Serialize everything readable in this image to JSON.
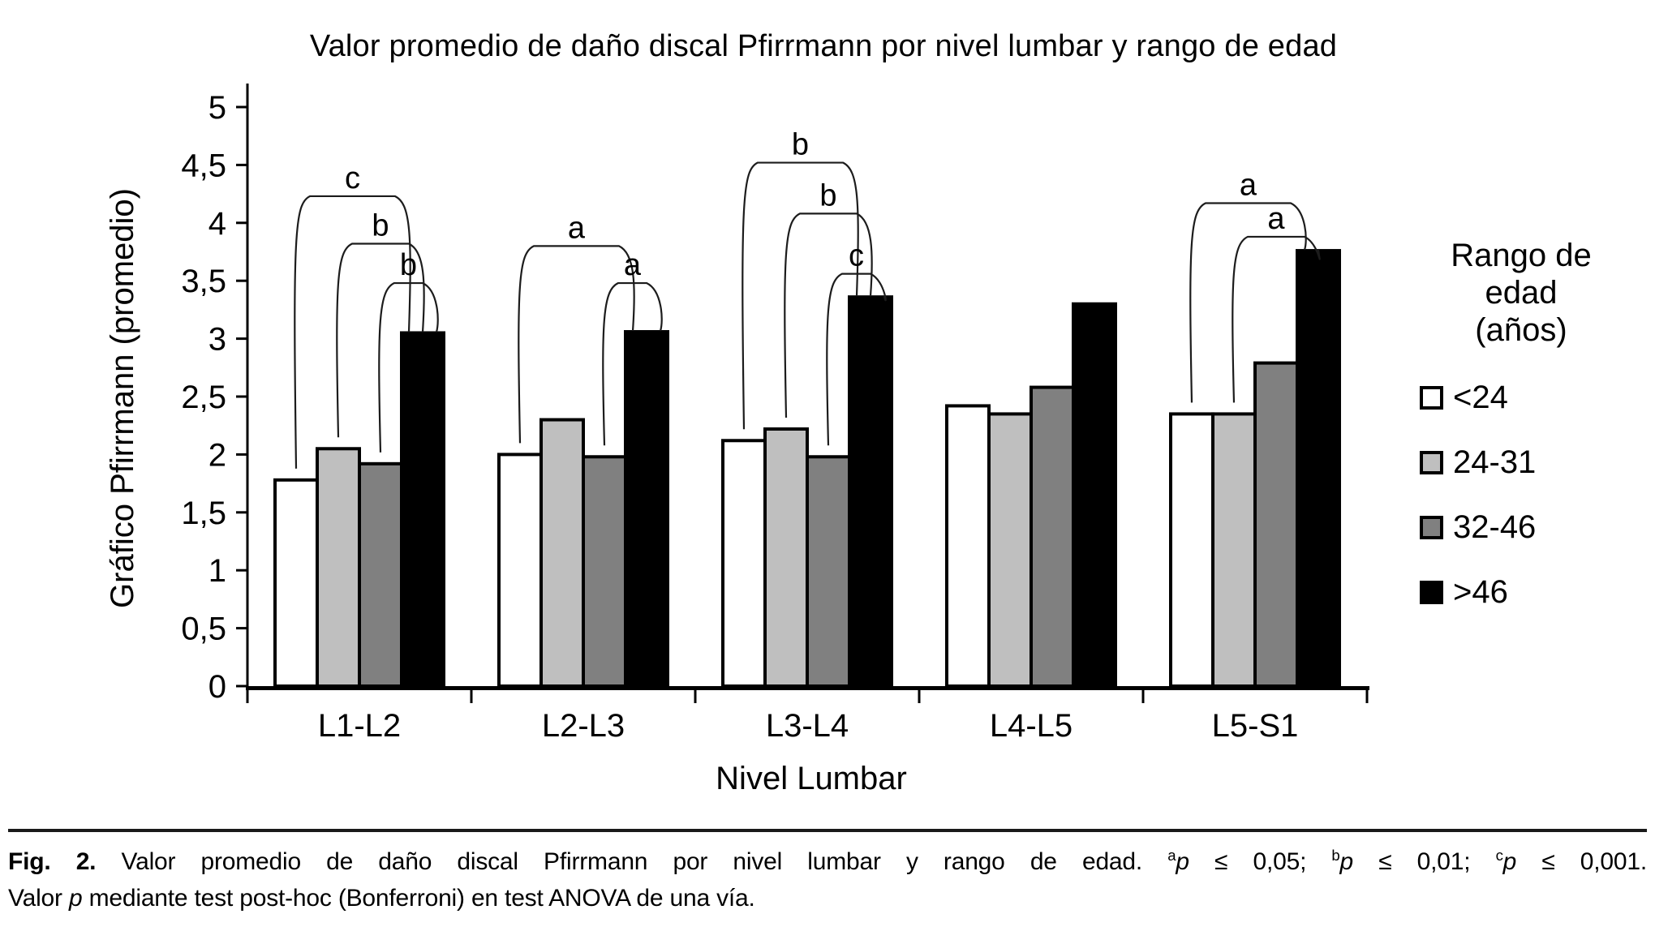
{
  "chart_data": {
    "type": "bar",
    "title": "Valor promedio de daño discal Pfirrmann por nivel lumbar y rango de edad",
    "xlabel": "Nivel Lumbar",
    "ylabel": "Gráfico Pfirrmann (promedio)",
    "categories": [
      "L1-L2",
      "L2-L3",
      "L3-L4",
      "L4-L5",
      "L5-S1"
    ],
    "series": [
      {
        "name": "<24",
        "color": "#ffffff",
        "values": [
          1.78,
          2.0,
          2.12,
          2.42,
          2.35
        ]
      },
      {
        "name": "24-31",
        "color": "#bfbfbf",
        "values": [
          2.05,
          2.3,
          2.22,
          2.35,
          2.35
        ]
      },
      {
        "name": "32-46",
        "color": "#808080",
        "values": [
          1.92,
          1.98,
          1.98,
          2.58,
          2.79
        ]
      },
      {
        "name": ">46",
        "color": "#000000",
        "values": [
          3.05,
          3.06,
          3.36,
          3.3,
          3.76
        ]
      }
    ],
    "ylim": [
      0,
      5
    ],
    "ytick_step": 0.5,
    "y_tick_labels": [
      "0",
      "0,5",
      "1",
      "1,5",
      "2",
      "2,5",
      "3",
      "3,5",
      "4",
      "4,5",
      "5"
    ],
    "grid": "off",
    "legend": {
      "title": "Rango de edad (años)",
      "position": "right"
    },
    "significance_brackets": [
      {
        "category": "L1-L2",
        "from_series": "<24",
        "to_series": ">46",
        "label": "c",
        "height": 4.23
      },
      {
        "category": "L1-L2",
        "from_series": "24-31",
        "to_series": ">46",
        "label": "b",
        "height": 3.82
      },
      {
        "category": "L1-L2",
        "from_series": "32-46",
        "to_series": ">46",
        "label": "b",
        "height": 3.48
      },
      {
        "category": "L2-L3",
        "from_series": "<24",
        "to_series": ">46",
        "label": "a",
        "height": 3.8
      },
      {
        "category": "L2-L3",
        "from_series": "32-46",
        "to_series": ">46",
        "label": "a",
        "height": 3.48
      },
      {
        "category": "L3-L4",
        "from_series": "<24",
        "to_series": ">46",
        "label": "b",
        "height": 4.52
      },
      {
        "category": "L3-L4",
        "from_series": "24-31",
        "to_series": ">46",
        "label": "b",
        "height": 4.08
      },
      {
        "category": "L3-L4",
        "from_series": "32-46",
        "to_series": ">46",
        "label": "c",
        "height": 3.56
      },
      {
        "category": "L5-S1",
        "from_series": "<24",
        "to_series": ">46",
        "label": "a",
        "height": 4.17
      },
      {
        "category": "L5-S1",
        "from_series": "24-31",
        "to_series": ">46",
        "label": "a",
        "height": 3.88
      }
    ]
  },
  "caption": {
    "line1_segments": [
      {
        "text": "Fig. 2.",
        "bold": true
      },
      {
        "text": " Valor promedio de daño discal Pfirrmann por nivel lumbar y rango de edad. "
      },
      {
        "text": "a",
        "sup": true
      },
      {
        "text": "p",
        "italic": true
      },
      {
        "text": " ≤ 0,05; "
      },
      {
        "text": "b",
        "sup": true
      },
      {
        "text": "p",
        "italic": true
      },
      {
        "text": " ≤ 0,01; "
      },
      {
        "text": "c",
        "sup": true
      },
      {
        "text": "p",
        "italic": true
      },
      {
        "text": " ≤ 0,001."
      }
    ],
    "line2_segments": [
      {
        "text": "Valor "
      },
      {
        "text": "p",
        "italic": true
      },
      {
        "text": " mediante test post-hoc (Bonferroni) en test ANOVA de una vía."
      }
    ]
  }
}
